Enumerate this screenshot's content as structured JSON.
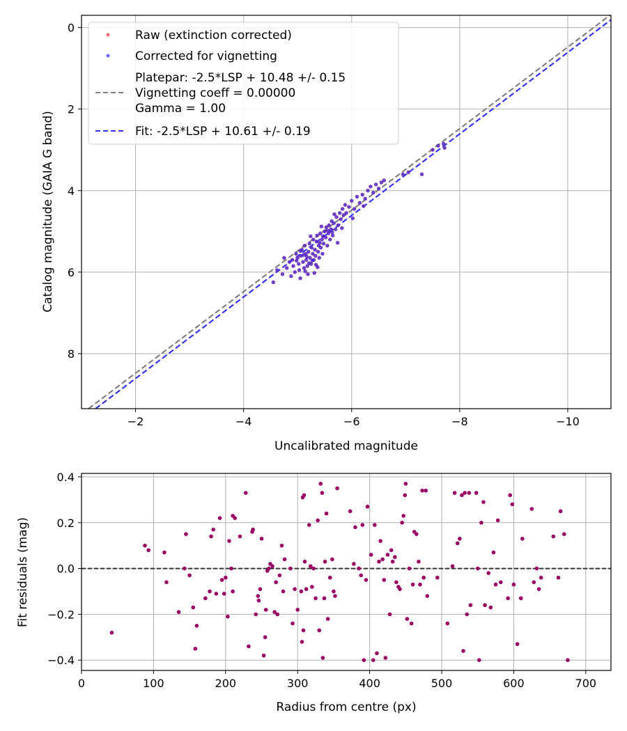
{
  "chart_data": [
    {
      "type": "scatter",
      "xlabel": "Uncalibrated magnitude",
      "ylabel": "Catalog magnitude (GAIA G band)",
      "xlim": [
        -1.0,
        -10.8
      ],
      "ylim": [
        9.35,
        -0.3
      ],
      "xticks": [
        -2,
        -4,
        -6,
        -8,
        -10
      ],
      "xtick_labels": [
        "−2",
        "−4",
        "−6",
        "−8",
        "−10"
      ],
      "yticks": [
        0,
        2,
        4,
        6,
        8
      ],
      "ytick_labels": [
        "0",
        "2",
        "4",
        "6",
        "8"
      ],
      "grid": true,
      "legend_position": "top-left",
      "legend": [
        {
          "label": "Raw (extinction corrected)",
          "kind": "point",
          "color": "#ff4444"
        },
        {
          "label": "Corrected for vignetting",
          "kind": "point",
          "color": "#4444ff"
        },
        {
          "label": "Platepar: -2.5*LSP + 10.48 +/- 0.15",
          "label2": "Vignetting coeff = 0.00000",
          "label3": "Gamma = 1.00",
          "kind": "dashed-line",
          "color": "#808080"
        },
        {
          "label": "Fit: -2.5*LSP + 10.61 +/- 0.19",
          "kind": "dashed-line",
          "color": "#3333ee"
        }
      ],
      "lines": [
        {
          "name": "Platepar",
          "slope": 1.0,
          "intercept": 10.48,
          "color": "#808080"
        },
        {
          "name": "Fit",
          "slope": 1.0,
          "intercept": 10.61,
          "color": "#3333ee"
        }
      ],
      "scatter_color_raw": "#ff4444",
      "scatter_color_corr": "#2222ee",
      "points": [
        [
          -4.55,
          6.25
        ],
        [
          -4.62,
          5.95
        ],
        [
          -4.72,
          6.05
        ],
        [
          -4.8,
          5.9
        ],
        [
          -4.85,
          5.75
        ],
        [
          -4.88,
          6.1
        ],
        [
          -4.9,
          5.7
        ],
        [
          -4.92,
          5.85
        ],
        [
          -4.95,
          6.0
        ],
        [
          -4.97,
          5.55
        ],
        [
          -5.0,
          5.65
        ],
        [
          -5.02,
          5.8
        ],
        [
          -5.03,
          5.95
        ],
        [
          -5.05,
          6.15
        ],
        [
          -5.06,
          5.6
        ],
        [
          -5.08,
          5.45
        ],
        [
          -5.1,
          5.75
        ],
        [
          -5.12,
          5.9
        ],
        [
          -5.13,
          5.35
        ],
        [
          -5.15,
          5.55
        ],
        [
          -5.16,
          5.7
        ],
        [
          -5.18,
          5.85
        ],
        [
          -5.19,
          6.05
        ],
        [
          -5.2,
          5.5
        ],
        [
          -5.22,
          5.3
        ],
        [
          -5.23,
          5.65
        ],
        [
          -5.25,
          5.8
        ],
        [
          -5.26,
          5.4
        ],
        [
          -5.28,
          5.55
        ],
        [
          -5.29,
          5.2
        ],
        [
          -5.3,
          5.7
        ],
        [
          -5.32,
          5.45
        ],
        [
          -5.33,
          5.6
        ],
        [
          -5.35,
          5.25
        ],
        [
          -5.36,
          5.1
        ],
        [
          -5.38,
          5.5
        ],
        [
          -5.39,
          5.35
        ],
        [
          -5.4,
          5.65
        ],
        [
          -5.42,
          5.05
        ],
        [
          -5.43,
          5.4
        ],
        [
          -5.45,
          5.2
        ],
        [
          -5.46,
          5.55
        ],
        [
          -5.48,
          5.3
        ],
        [
          -5.5,
          5.0
        ],
        [
          -5.52,
          5.15
        ],
        [
          -5.53,
          4.9
        ],
        [
          -5.55,
          5.35
        ],
        [
          -5.57,
          5.05
        ],
        [
          -5.58,
          4.85
        ],
        [
          -5.6,
          5.2
        ],
        [
          -5.62,
          4.95
        ],
        [
          -5.63,
          4.75
        ],
        [
          -5.65,
          5.1
        ],
        [
          -5.67,
          4.8
        ],
        [
          -5.7,
          4.95
        ],
        [
          -5.72,
          4.65
        ],
        [
          -5.75,
          4.85
        ],
        [
          -5.78,
          4.55
        ],
        [
          -5.8,
          4.7
        ],
        [
          -5.83,
          4.45
        ],
        [
          -5.85,
          4.6
        ],
        [
          -5.88,
          4.35
        ],
        [
          -5.9,
          4.55
        ],
        [
          -5.95,
          4.4
        ],
        [
          -6.0,
          4.25
        ],
        [
          -6.05,
          4.45
        ],
        [
          -6.1,
          4.15
        ],
        [
          -6.15,
          4.3
        ],
        [
          -6.2,
          4.1
        ],
        [
          -6.25,
          4.2
        ],
        [
          -6.3,
          4.0
        ],
        [
          -6.35,
          3.9
        ],
        [
          -6.4,
          4.05
        ],
        [
          -6.45,
          3.85
        ],
        [
          -6.5,
          3.95
        ],
        [
          -6.55,
          3.8
        ],
        [
          -6.6,
          3.75
        ],
        [
          -6.95,
          3.6
        ],
        [
          -7.05,
          3.55
        ],
        [
          -7.3,
          3.6
        ],
        [
          -7.5,
          3.0
        ],
        [
          -7.6,
          2.9
        ],
        [
          -7.7,
          2.85
        ],
        [
          -7.72,
          2.95
        ],
        [
          -5.05,
          5.48
        ],
        [
          -5.17,
          5.62
        ],
        [
          -5.27,
          5.72
        ],
        [
          -5.34,
          5.82
        ],
        [
          -5.11,
          5.58
        ],
        [
          -5.21,
          5.78
        ],
        [
          -5.41,
          5.28
        ],
        [
          -5.47,
          5.12
        ],
        [
          -5.56,
          4.98
        ],
        [
          -5.64,
          5.02
        ],
        [
          -4.98,
          5.72
        ],
        [
          -5.14,
          5.98
        ],
        [
          -5.24,
          5.12
        ],
        [
          -5.44,
          4.88
        ],
        [
          -5.68,
          4.58
        ],
        [
          -5.74,
          5.28
        ],
        [
          -5.82,
          4.92
        ],
        [
          -6.02,
          4.68
        ],
        [
          -6.22,
          4.38
        ],
        [
          -4.75,
          5.65
        ],
        [
          -5.31,
          6.02
        ],
        [
          -5.37,
          5.88
        ]
      ]
    },
    {
      "type": "scatter",
      "xlabel": "Radius from centre (px)",
      "ylabel": "Fit residuals (mag)",
      "xlim": [
        0,
        735
      ],
      "ylim": [
        -0.445,
        0.415
      ],
      "xticks": [
        0,
        100,
        200,
        300,
        400,
        500,
        600,
        700
      ],
      "xtick_labels": [
        "0",
        "100",
        "200",
        "300",
        "400",
        "500",
        "600",
        "700"
      ],
      "yticks": [
        -0.4,
        -0.2,
        0.0,
        0.2,
        0.4
      ],
      "ytick_labels": [
        "−0.4",
        "−0.2",
        "0.0",
        "0.2",
        "0.4"
      ],
      "grid": true,
      "hline": 0.0,
      "point_color": "#990066",
      "points": [
        [
          42,
          -0.28
        ],
        [
          88,
          0.1
        ],
        [
          93,
          0.08
        ],
        [
          115,
          0.07
        ],
        [
          118,
          -0.06
        ],
        [
          135,
          -0.19
        ],
        [
          143,
          0.0
        ],
        [
          145,
          0.15
        ],
        [
          150,
          -0.03
        ],
        [
          155,
          -0.17
        ],
        [
          158,
          -0.35
        ],
        [
          160,
          -0.25
        ],
        [
          172,
          -0.13
        ],
        [
          178,
          -0.1
        ],
        [
          180,
          0.14
        ],
        [
          183,
          0.17
        ],
        [
          187,
          -0.11
        ],
        [
          192,
          0.22
        ],
        [
          195,
          -0.05
        ],
        [
          198,
          -0.11
        ],
        [
          200,
          -0.04
        ],
        [
          203,
          -0.21
        ],
        [
          205,
          0.12
        ],
        [
          208,
          0.0
        ],
        [
          210,
          -0.1
        ],
        [
          210,
          0.23
        ],
        [
          213,
          0.22
        ],
        [
          220,
          0.14
        ],
        [
          228,
          0.33
        ],
        [
          232,
          -0.34
        ],
        [
          237,
          0.16
        ],
        [
          238,
          0.17
        ],
        [
          242,
          -0.2
        ],
        [
          245,
          -0.12
        ],
        [
          246,
          -0.14
        ],
        [
          248,
          -0.09
        ],
        [
          250,
          0.13
        ],
        [
          253,
          -0.38
        ],
        [
          255,
          -0.3
        ],
        [
          256,
          -0.18
        ],
        [
          258,
          -0.01
        ],
        [
          260,
          0.0
        ],
        [
          262,
          0.02
        ],
        [
          265,
          0.01
        ],
        [
          268,
          -0.19
        ],
        [
          270,
          -0.06
        ],
        [
          272,
          -0.2
        ],
        [
          275,
          -0.03
        ],
        [
          278,
          0.1
        ],
        [
          280,
          -0.1
        ],
        [
          282,
          0.04
        ],
        [
          290,
          0.0
        ],
        [
          293,
          -0.24
        ],
        [
          296,
          -0.09
        ],
        [
          300,
          -0.18
        ],
        [
          305,
          -0.1
        ],
        [
          306,
          -0.32
        ],
        [
          307,
          0.31
        ],
        [
          308,
          -0.27
        ],
        [
          309,
          0.32
        ],
        [
          310,
          0.03
        ],
        [
          312,
          -0.09
        ],
        [
          316,
          0.19
        ],
        [
          318,
          0.01
        ],
        [
          320,
          -0.08
        ],
        [
          322,
          0.0
        ],
        [
          325,
          -0.13
        ],
        [
          328,
          0.21
        ],
        [
          330,
          -0.27
        ],
        [
          332,
          0.37
        ],
        [
          334,
          0.33
        ],
        [
          335,
          -0.39
        ],
        [
          337,
          -0.13
        ],
        [
          338,
          0.03
        ],
        [
          340,
          0.24
        ],
        [
          342,
          -0.22
        ],
        [
          345,
          -0.04
        ],
        [
          348,
          0.04
        ],
        [
          350,
          -0.1
        ],
        [
          352,
          -0.12
        ],
        [
          355,
          0.35
        ],
        [
          373,
          0.25
        ],
        [
          378,
          0.02
        ],
        [
          380,
          0.18
        ],
        [
          385,
          0.0
        ],
        [
          388,
          -0.03
        ],
        [
          390,
          0.19
        ],
        [
          392,
          -0.4
        ],
        [
          395,
          -0.05
        ],
        [
          397,
          0.27
        ],
        [
          402,
          0.06
        ],
        [
          405,
          -0.4
        ],
        [
          407,
          0.19
        ],
        [
          410,
          -0.37
        ],
        [
          413,
          0.03
        ],
        [
          415,
          0.12
        ],
        [
          418,
          0.04
        ],
        [
          420,
          -0.05
        ],
        [
          422,
          -0.39
        ],
        [
          425,
          0.06
        ],
        [
          428,
          -0.2
        ],
        [
          430,
          0.08
        ],
        [
          432,
          0.03
        ],
        [
          435,
          0.05
        ],
        [
          437,
          -0.06
        ],
        [
          440,
          -0.08
        ],
        [
          442,
          -0.09
        ],
        [
          445,
          0.2
        ],
        [
          447,
          0.23
        ],
        [
          449,
          0.32
        ],
        [
          450,
          0.37
        ],
        [
          452,
          -0.22
        ],
        [
          455,
          0.0
        ],
        [
          458,
          -0.24
        ],
        [
          460,
          -0.07
        ],
        [
          462,
          0.16
        ],
        [
          465,
          0.15
        ],
        [
          468,
          0.03
        ],
        [
          470,
          -0.07
        ],
        [
          473,
          0.34
        ],
        [
          475,
          -0.04
        ],
        [
          478,
          0.34
        ],
        [
          480,
          -0.12
        ],
        [
          494,
          -0.04
        ],
        [
          508,
          -0.24
        ],
        [
          515,
          0.01
        ],
        [
          518,
          0.33
        ],
        [
          522,
          0.11
        ],
        [
          525,
          0.13
        ],
        [
          528,
          0.32
        ],
        [
          530,
          -0.36
        ],
        [
          532,
          0.33
        ],
        [
          535,
          -0.2
        ],
        [
          538,
          0.33
        ],
        [
          540,
          -0.16
        ],
        [
          548,
          0.33
        ],
        [
          550,
          0.0
        ],
        [
          552,
          -0.4
        ],
        [
          555,
          0.2
        ],
        [
          558,
          0.29
        ],
        [
          560,
          -0.16
        ],
        [
          565,
          -0.02
        ],
        [
          568,
          -0.17
        ],
        [
          572,
          0.07
        ],
        [
          575,
          -0.07
        ],
        [
          578,
          0.21
        ],
        [
          582,
          -0.06
        ],
        [
          592,
          -0.13
        ],
        [
          595,
          0.32
        ],
        [
          598,
          0.28
        ],
        [
          600,
          -0.07
        ],
        [
          605,
          -0.33
        ],
        [
          610,
          -0.13
        ],
        [
          612,
          0.13
        ],
        [
          625,
          0.26
        ],
        [
          628,
          -0.06
        ],
        [
          632,
          0.0
        ],
        [
          635,
          -0.09
        ],
        [
          638,
          -0.04
        ],
        [
          655,
          0.14
        ],
        [
          662,
          -0.04
        ],
        [
          665,
          0.25
        ],
        [
          670,
          0.15
        ],
        [
          675,
          -0.4
        ]
      ]
    }
  ]
}
